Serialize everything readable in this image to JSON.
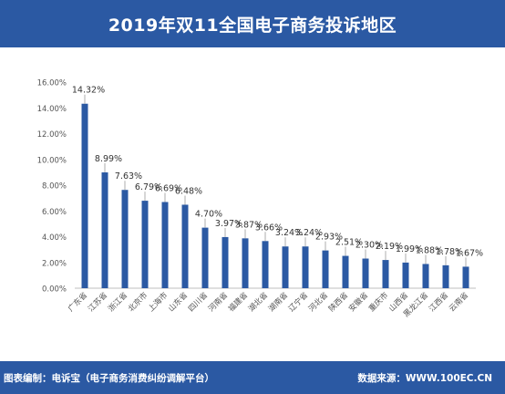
{
  "header": {
    "title": "2019年双11全国电子商务投诉地区"
  },
  "footer": {
    "compiler": "图表编制：电诉宝（电子商务消费纠纷调解平台）",
    "source": "数据来源：WWW.100EC.CN"
  },
  "colors": {
    "header_bg": "#2b59a3",
    "bar": "#2b59a3",
    "axis_text": "#555555",
    "label_text": "#333333",
    "gridline": "#d9d9d9"
  },
  "chart_data": {
    "type": "bar",
    "title": "2019年双11全国电子商务投诉地区",
    "xlabel": "",
    "ylabel": "",
    "ylim": [
      0,
      16
    ],
    "yticks": [
      "0.00%",
      "2.00%",
      "4.00%",
      "6.00%",
      "8.00%",
      "10.00%",
      "12.00%",
      "14.00%",
      "16.00%"
    ],
    "grid": false,
    "categories": [
      "广东省",
      "江苏省",
      "浙江省",
      "北京市",
      "上海市",
      "山东省",
      "四川省",
      "河南省",
      "福建省",
      "湖北省",
      "湖南省",
      "辽宁省",
      "河北省",
      "陕西省",
      "安徽省",
      "重庆市",
      "山西省",
      "黑龙江省",
      "江西省",
      "云南省"
    ],
    "values": [
      14.32,
      8.99,
      7.63,
      6.79,
      6.69,
      6.48,
      4.7,
      3.97,
      3.87,
      3.66,
      3.24,
      3.24,
      2.93,
      2.51,
      2.3,
      2.19,
      1.99,
      1.88,
      1.78,
      1.67
    ],
    "labels": [
      "14.32%",
      "8.99%",
      "7.63%",
      "6.79%",
      "6.69%",
      "6.48%",
      "4.70%",
      "3.97%",
      "3.87%",
      "3.66%",
      "3.24%",
      "3.24%",
      "2.93%",
      "2.51%",
      "2.30%",
      "2.19%",
      "1.99%",
      "1.88%",
      "1.78%",
      "1.67%"
    ]
  }
}
